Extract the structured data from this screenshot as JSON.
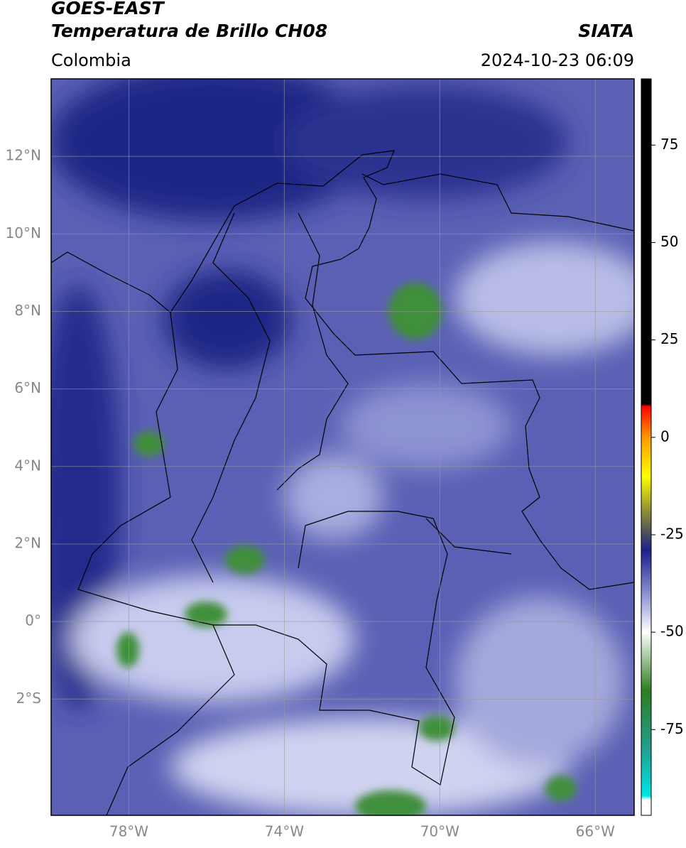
{
  "header": {
    "title": "GOES-EAST",
    "subtitle": "Temperatura de Brillo CH08",
    "region": "Colombia",
    "source": "SIATA",
    "datetime": "2024-10-23 06:09"
  },
  "chart_data": {
    "type": "map",
    "grid": true,
    "xlim": [
      -80,
      -65
    ],
    "ylim": [
      -5,
      14
    ],
    "xticks": [
      {
        "value": -78,
        "label": "78°W"
      },
      {
        "value": -74,
        "label": "74°W"
      },
      {
        "value": -70,
        "label": "70°W"
      },
      {
        "value": -66,
        "label": "66°W"
      }
    ],
    "yticks": [
      {
        "value": -2,
        "label": "2°S"
      },
      {
        "value": 0,
        "label": "0°"
      },
      {
        "value": 2,
        "label": "2°N"
      },
      {
        "value": 4,
        "label": "4°N"
      },
      {
        "value": 6,
        "label": "6°N"
      },
      {
        "value": 8,
        "label": "8°N"
      },
      {
        "value": 10,
        "label": "10°N"
      },
      {
        "value": 12,
        "label": "12°N"
      }
    ],
    "colorbar": {
      "lim": [
        -97,
        92
      ],
      "ticks": [
        -75,
        -50,
        -25,
        0,
        25,
        50,
        75
      ],
      "stops": [
        {
          "value": -97,
          "color": "#ffffff"
        },
        {
          "value": -93,
          "color": "#ffffff"
        },
        {
          "value": -92,
          "color": "#00e5e5"
        },
        {
          "value": -80,
          "color": "#20a090"
        },
        {
          "value": -65,
          "color": "#2e7d20"
        },
        {
          "value": -50,
          "color": "#ffffff"
        },
        {
          "value": -40,
          "color": "#8a8fd0"
        },
        {
          "value": -29,
          "color": "#1a1f8a"
        },
        {
          "value": -24,
          "color": "#555555"
        },
        {
          "value": -18,
          "color": "#999933"
        },
        {
          "value": -10,
          "color": "#ffff00"
        },
        {
          "value": 0,
          "color": "#ff9900"
        },
        {
          "value": 8,
          "color": "#ff0000"
        },
        {
          "value": 8.5,
          "color": "#000000"
        },
        {
          "value": 92,
          "color": "#000000"
        }
      ]
    }
  }
}
